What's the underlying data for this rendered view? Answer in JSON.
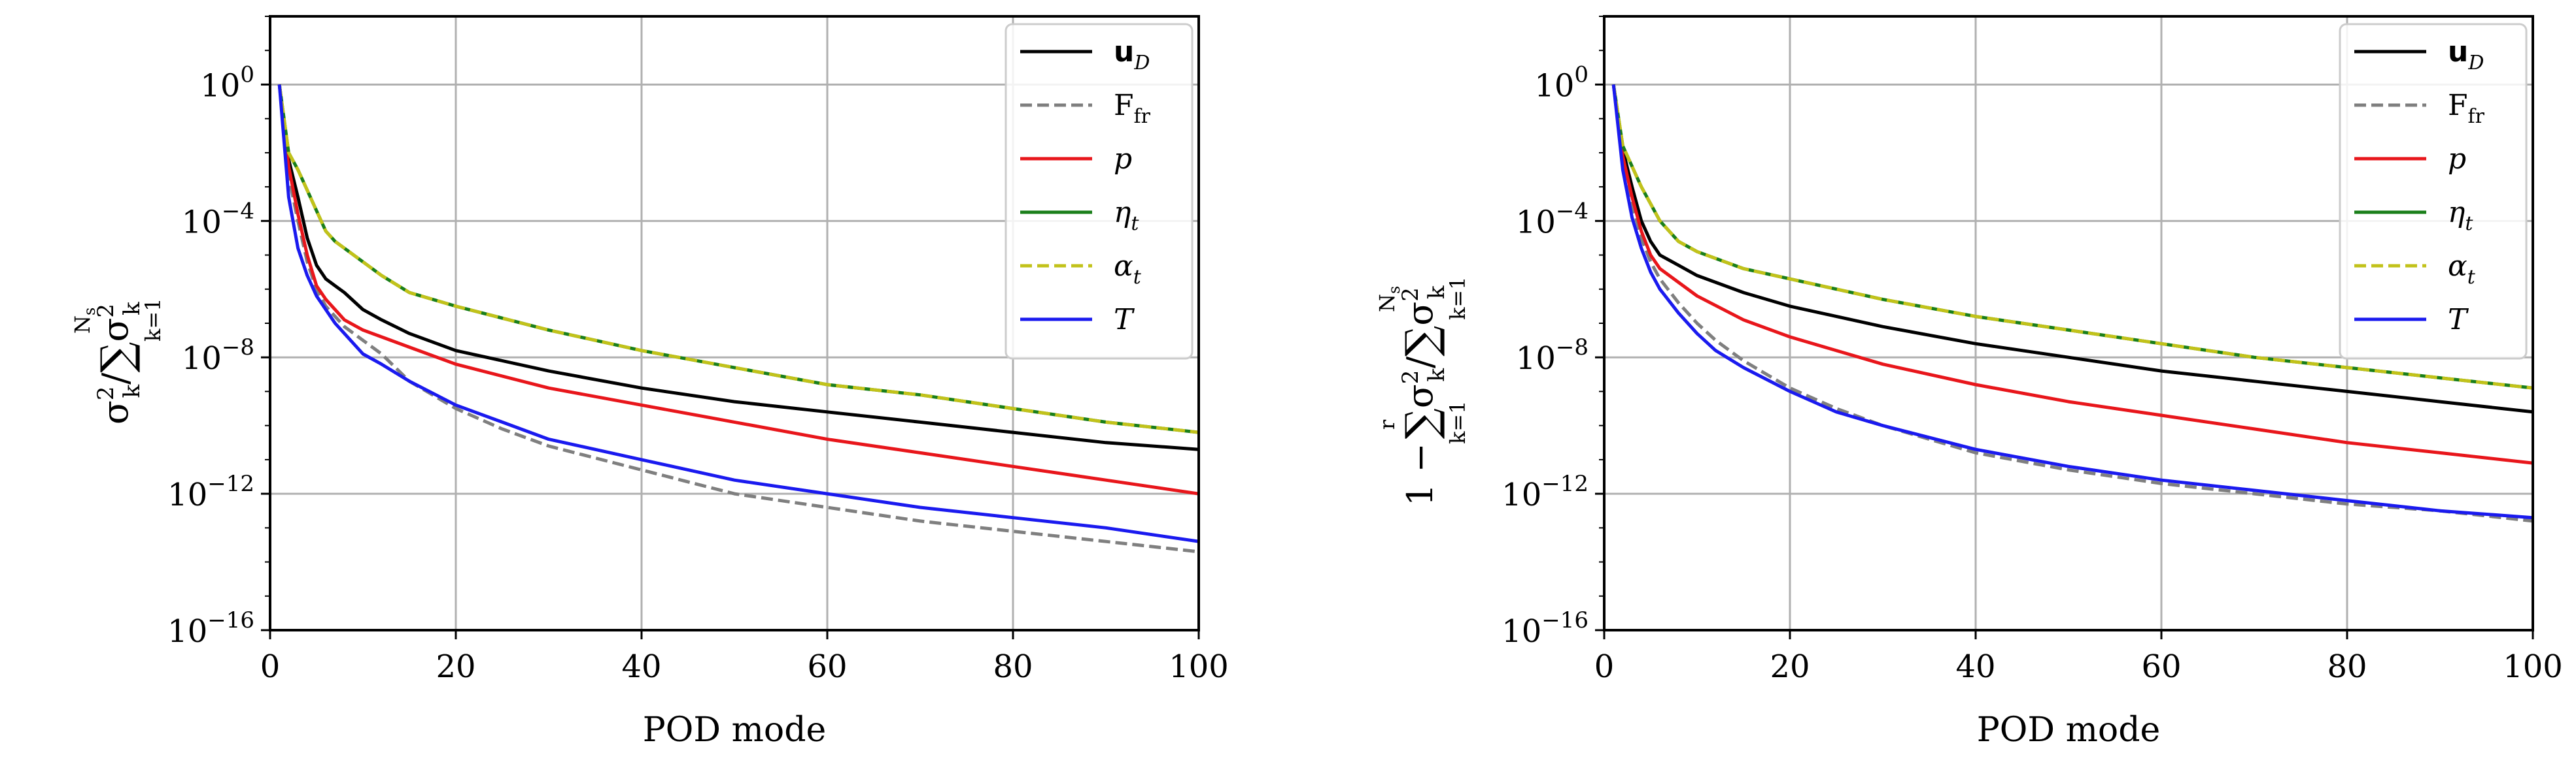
{
  "chart_data": [
    {
      "type": "line",
      "title": "",
      "xlabel": "POD mode",
      "ylabel": "σ_k² / Σ_{k=1}^{N_s} σ_k²",
      "ylabel_parts": {
        "num": "σ",
        "num_sup": "2",
        "num_sub": "k",
        "slash": "/",
        "sum": "∑",
        "sum_top": "N",
        "sum_top_sub": "s",
        "sum_bot": "k=1",
        "den": "σ",
        "den_sup": "2",
        "den_sub": "k"
      },
      "xlim": [
        0,
        100
      ],
      "ylim_log10": [
        -16,
        2
      ],
      "yscale": "log",
      "xticks": [
        "0",
        "20",
        "40",
        "60",
        "80",
        "100"
      ],
      "xtick_values": [
        0,
        20,
        40,
        60,
        80,
        100
      ],
      "yticks": [
        {
          "base": "10",
          "exp": "0",
          "v": 0
        },
        {
          "base": "10",
          "exp": "−4",
          "v": -4
        },
        {
          "base": "10",
          "exp": "−8",
          "v": -8
        },
        {
          "base": "10",
          "exp": "−12",
          "v": -12
        },
        {
          "base": "10",
          "exp": "−16",
          "v": -16
        }
      ],
      "grid": true,
      "legend_position": "top-right",
      "series": [
        {
          "name": "u",
          "name_sub": "D",
          "bold": true,
          "color": "#000000",
          "dash": false,
          "x": [
            1,
            2,
            3,
            4,
            5,
            6,
            7,
            8,
            10,
            12,
            15,
            20,
            30,
            40,
            50,
            60,
            70,
            80,
            90,
            100
          ],
          "log10y": [
            0,
            -2.2,
            -3.3,
            -4.5,
            -5.3,
            -5.7,
            -5.9,
            -6.1,
            -6.6,
            -6.9,
            -7.3,
            -7.8,
            -8.4,
            -8.9,
            -9.3,
            -9.6,
            -9.9,
            -10.2,
            -10.5,
            -10.7
          ]
        },
        {
          "name": "F",
          "name_sub": "fr",
          "bold": false,
          "color": "#7f7f7f",
          "dash": true,
          "x": [
            1,
            2,
            3,
            4,
            5,
            6,
            7,
            8,
            10,
            12,
            15,
            20,
            25,
            30,
            40,
            50,
            60,
            70,
            80,
            90,
            100
          ],
          "log10y": [
            0,
            -2.7,
            -4.0,
            -5.2,
            -6.0,
            -6.5,
            -6.8,
            -7.1,
            -7.5,
            -7.9,
            -8.7,
            -9.5,
            -10.1,
            -10.6,
            -11.3,
            -12.0,
            -12.4,
            -12.8,
            -13.1,
            -13.4,
            -13.7
          ]
        },
        {
          "name": "p",
          "name_sub": "",
          "bold": false,
          "color": "#e8161b",
          "dash": false,
          "x": [
            1,
            2,
            3,
            4,
            5,
            6,
            7,
            8,
            10,
            12,
            15,
            20,
            30,
            40,
            50,
            60,
            70,
            80,
            90,
            100
          ],
          "log10y": [
            0,
            -2.4,
            -3.8,
            -5.0,
            -5.9,
            -6.3,
            -6.6,
            -6.9,
            -7.2,
            -7.4,
            -7.7,
            -8.2,
            -8.9,
            -9.4,
            -9.9,
            -10.4,
            -10.8,
            -11.2,
            -11.6,
            -12.0
          ]
        },
        {
          "name": "η",
          "name_sub": "t",
          "bold": false,
          "color": "#1a7f1a",
          "dash": false,
          "x": [
            1,
            2,
            3,
            4,
            5,
            6,
            7,
            8,
            10,
            12,
            15,
            20,
            30,
            40,
            50,
            60,
            70,
            80,
            90,
            100
          ],
          "log10y": [
            0,
            -2.0,
            -2.5,
            -3.1,
            -3.7,
            -4.3,
            -4.6,
            -4.8,
            -5.2,
            -5.6,
            -6.1,
            -6.5,
            -7.2,
            -7.8,
            -8.3,
            -8.8,
            -9.1,
            -9.5,
            -9.9,
            -10.2
          ]
        },
        {
          "name": "α",
          "name_sub": "t",
          "bold": false,
          "color": "#c2c21a",
          "dash": true,
          "x": [
            1,
            2,
            3,
            4,
            5,
            6,
            7,
            8,
            10,
            12,
            15,
            20,
            30,
            40,
            50,
            60,
            70,
            80,
            90,
            100
          ],
          "log10y": [
            0,
            -2.0,
            -2.5,
            -3.1,
            -3.7,
            -4.3,
            -4.6,
            -4.8,
            -5.2,
            -5.6,
            -6.1,
            -6.5,
            -7.2,
            -7.8,
            -8.3,
            -8.8,
            -9.1,
            -9.5,
            -9.9,
            -10.2
          ]
        },
        {
          "name": "T",
          "name_sub": "",
          "bold": false,
          "color": "#1a1aef",
          "dash": false,
          "x": [
            1,
            2,
            3,
            4,
            5,
            6,
            7,
            8,
            10,
            12,
            15,
            20,
            25,
            30,
            40,
            50,
            60,
            70,
            80,
            90,
            100
          ],
          "log10y": [
            0,
            -3.3,
            -4.8,
            -5.6,
            -6.2,
            -6.6,
            -7.0,
            -7.3,
            -7.9,
            -8.2,
            -8.7,
            -9.4,
            -9.9,
            -10.4,
            -11.0,
            -11.6,
            -12.0,
            -12.4,
            -12.7,
            -13.0,
            -13.4
          ]
        }
      ]
    },
    {
      "type": "line",
      "title": "",
      "xlabel": "POD mode",
      "ylabel": "1 − Σ_{k=1}^{r} σ_k² / Σ_{k=1}^{N_s} σ_k²",
      "ylabel_parts": {
        "one": "1 −",
        "sum1": "∑",
        "sum1_top": "r",
        "sum1_bot": "k=1",
        "num": "σ",
        "num_sup": "2",
        "num_sub": "k",
        "slash": "/",
        "sum2": "∑",
        "sum2_top": "N",
        "sum2_top_sub": "s",
        "sum2_bot": "k=1",
        "den": "σ",
        "den_sup": "2",
        "den_sub": "k"
      },
      "xlim": [
        0,
        100
      ],
      "ylim_log10": [
        -16,
        2
      ],
      "yscale": "log",
      "xticks": [
        "0",
        "20",
        "40",
        "60",
        "80",
        "100"
      ],
      "xtick_values": [
        0,
        20,
        40,
        60,
        80,
        100
      ],
      "yticks": [
        {
          "base": "10",
          "exp": "0",
          "v": 0
        },
        {
          "base": "10",
          "exp": "−4",
          "v": -4
        },
        {
          "base": "10",
          "exp": "−8",
          "v": -8
        },
        {
          "base": "10",
          "exp": "−12",
          "v": -12
        },
        {
          "base": "10",
          "exp": "−16",
          "v": -16
        }
      ],
      "grid": true,
      "legend_position": "top-right",
      "series": [
        {
          "name": "u",
          "name_sub": "D",
          "bold": true,
          "color": "#000000",
          "dash": false,
          "x": [
            1,
            2,
            3,
            4,
            5,
            6,
            8,
            10,
            15,
            20,
            30,
            40,
            50,
            60,
            70,
            80,
            90,
            100
          ],
          "log10y": [
            0,
            -1.9,
            -3.0,
            -4.0,
            -4.6,
            -5.0,
            -5.3,
            -5.6,
            -6.1,
            -6.5,
            -7.1,
            -7.6,
            -8.0,
            -8.4,
            -8.7,
            -9.0,
            -9.3,
            -9.6
          ]
        },
        {
          "name": "F",
          "name_sub": "fr",
          "bold": false,
          "color": "#7f7f7f",
          "dash": true,
          "x": [
            1,
            2,
            3,
            4,
            5,
            6,
            8,
            10,
            12,
            15,
            20,
            25,
            30,
            40,
            50,
            60,
            70,
            80,
            90,
            100
          ],
          "log10y": [
            0,
            -2.3,
            -3.5,
            -4.5,
            -5.2,
            -5.7,
            -6.4,
            -7.0,
            -7.5,
            -8.1,
            -8.9,
            -9.5,
            -10.0,
            -10.8,
            -11.3,
            -11.7,
            -12.0,
            -12.3,
            -12.5,
            -12.8
          ]
        },
        {
          "name": "p",
          "name_sub": "",
          "bold": false,
          "color": "#e8161b",
          "dash": false,
          "x": [
            1,
            2,
            3,
            4,
            5,
            6,
            8,
            10,
            15,
            20,
            30,
            40,
            50,
            60,
            70,
            80,
            90,
            100
          ],
          "log10y": [
            0,
            -2.1,
            -3.3,
            -4.3,
            -5.0,
            -5.4,
            -5.8,
            -6.2,
            -6.9,
            -7.4,
            -8.2,
            -8.8,
            -9.3,
            -9.7,
            -10.1,
            -10.5,
            -10.8,
            -11.1
          ]
        },
        {
          "name": "η",
          "name_sub": "t",
          "bold": false,
          "color": "#1a7f1a",
          "dash": false,
          "x": [
            1,
            2,
            3,
            4,
            5,
            6,
            8,
            10,
            15,
            20,
            30,
            40,
            50,
            60,
            70,
            80,
            90,
            100
          ],
          "log10y": [
            0,
            -1.8,
            -2.4,
            -3.0,
            -3.5,
            -4.0,
            -4.6,
            -4.9,
            -5.4,
            -5.7,
            -6.3,
            -6.8,
            -7.2,
            -7.6,
            -8.0,
            -8.3,
            -8.6,
            -8.9
          ]
        },
        {
          "name": "α",
          "name_sub": "t",
          "bold": false,
          "color": "#c2c21a",
          "dash": true,
          "x": [
            1,
            2,
            3,
            4,
            5,
            6,
            8,
            10,
            15,
            20,
            30,
            40,
            50,
            60,
            70,
            80,
            90,
            100
          ],
          "log10y": [
            0,
            -1.8,
            -2.4,
            -3.0,
            -3.5,
            -4.0,
            -4.6,
            -4.9,
            -5.4,
            -5.7,
            -6.3,
            -6.8,
            -7.2,
            -7.6,
            -8.0,
            -8.3,
            -8.6,
            -8.9
          ]
        },
        {
          "name": "T",
          "name_sub": "",
          "bold": false,
          "color": "#1a1aef",
          "dash": false,
          "x": [
            1,
            2,
            3,
            4,
            5,
            6,
            8,
            10,
            12,
            15,
            20,
            25,
            30,
            40,
            50,
            60,
            70,
            80,
            90,
            100
          ],
          "log10y": [
            0,
            -2.5,
            -3.9,
            -4.8,
            -5.5,
            -6.0,
            -6.7,
            -7.3,
            -7.8,
            -8.3,
            -9.0,
            -9.6,
            -10.0,
            -10.7,
            -11.2,
            -11.6,
            -11.9,
            -12.2,
            -12.5,
            -12.7
          ]
        }
      ]
    }
  ]
}
